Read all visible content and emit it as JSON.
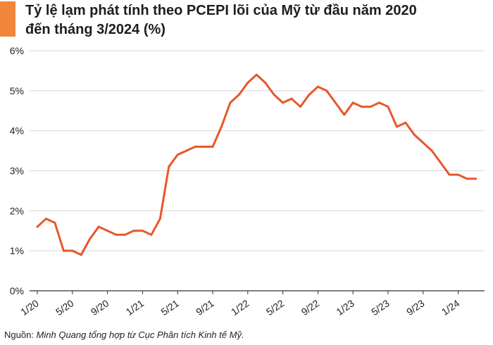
{
  "title_lines": [
    "Tỷ lệ lạm phát tính theo PCEPI lõi của Mỹ từ đầu năm 2020",
    "đến tháng 3/2024 (%)"
  ],
  "source": {
    "label": "Nguồn:",
    "text": "Minh Quang tổng hợp từ Cục Phân tích Kinh tế Mỹ."
  },
  "colors": {
    "line": "#e8572a",
    "accent": "#f0873a",
    "grid": "#d9d9d9",
    "axis": "#333333"
  },
  "chart_data": {
    "type": "line",
    "title": "Tỷ lệ lạm phát tính theo PCEPI lõi của Mỹ từ đầu năm 2020 đến tháng 3/2024 (%)",
    "xlabel": "",
    "ylabel": "",
    "ylim": [
      0,
      6
    ],
    "y_ticks": [
      0,
      1,
      2,
      3,
      4,
      5,
      6
    ],
    "y_tick_labels": [
      "0%",
      "1%",
      "2%",
      "3%",
      "4%",
      "5%",
      "6%"
    ],
    "x_tick_labels": [
      "1/20",
      "5/20",
      "9/20",
      "1/21",
      "5/21",
      "9/21",
      "1/22",
      "5/22",
      "9/22",
      "1/23",
      "5/23",
      "9/23",
      "1/24"
    ],
    "x": [
      "1/20",
      "2/20",
      "3/20",
      "4/20",
      "5/20",
      "6/20",
      "7/20",
      "8/20",
      "9/20",
      "10/20",
      "11/20",
      "12/20",
      "1/21",
      "2/21",
      "3/21",
      "4/21",
      "5/21",
      "6/21",
      "7/21",
      "8/21",
      "9/21",
      "10/21",
      "11/21",
      "12/21",
      "1/22",
      "2/22",
      "3/22",
      "4/22",
      "5/22",
      "6/22",
      "7/22",
      "8/22",
      "9/22",
      "10/22",
      "11/22",
      "12/22",
      "1/23",
      "2/23",
      "3/23",
      "4/23",
      "5/23",
      "6/23",
      "7/23",
      "8/23",
      "9/23",
      "10/23",
      "11/23",
      "12/23",
      "1/24",
      "2/24",
      "3/24"
    ],
    "values": [
      1.6,
      1.8,
      1.7,
      1.0,
      1.0,
      0.9,
      1.3,
      1.6,
      1.5,
      1.4,
      1.4,
      1.5,
      1.5,
      1.4,
      1.8,
      3.1,
      3.4,
      3.5,
      3.6,
      3.6,
      3.6,
      4.1,
      4.7,
      4.9,
      5.2,
      5.4,
      5.2,
      4.9,
      4.7,
      4.8,
      4.6,
      4.9,
      5.1,
      5.0,
      4.7,
      4.4,
      4.7,
      4.6,
      4.6,
      4.7,
      4.6,
      4.1,
      4.2,
      3.9,
      3.7,
      3.5,
      3.2,
      2.9,
      2.9,
      2.8,
      2.8
    ],
    "grid": true,
    "legend": "none"
  }
}
